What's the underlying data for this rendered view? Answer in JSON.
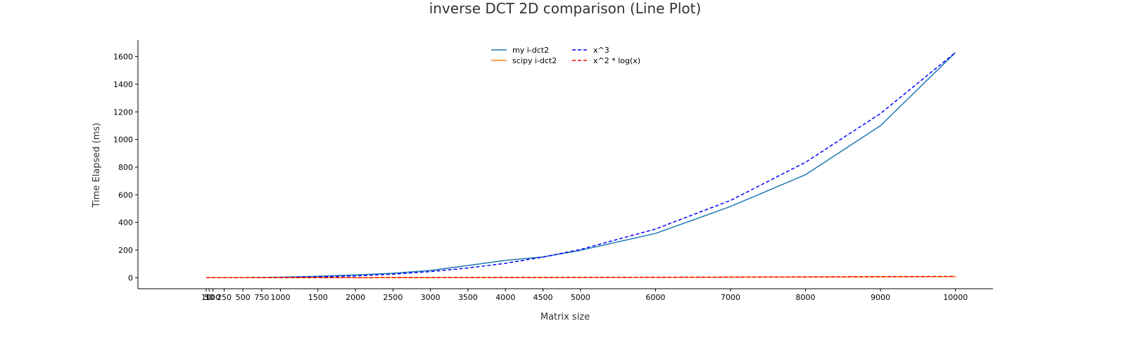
{
  "chart_data": {
    "type": "line",
    "title": "inverse DCT 2D comparison (Line Plot)",
    "xlabel": "Matrix size",
    "ylabel": "Time Elapsed (ms)",
    "xlim": [
      -900,
      10500
    ],
    "ylim": [
      -80,
      1720
    ],
    "x": [
      10,
      50,
      100,
      250,
      500,
      750,
      1000,
      1500,
      2000,
      2500,
      3000,
      3500,
      4000,
      4500,
      5000,
      6000,
      7000,
      8000,
      9000,
      10000
    ],
    "x_ticks": [
      10,
      50,
      100,
      250,
      500,
      750,
      1000,
      1500,
      2000,
      2500,
      3000,
      3500,
      4000,
      4500,
      5000,
      6000,
      7000,
      8000,
      9000,
      10000
    ],
    "x_tick_labels": [
      "10",
      "50",
      "100",
      "250",
      "500",
      "750",
      "1000",
      "1500",
      "2000",
      "2500",
      "3000",
      "3500",
      "4000",
      "4500",
      "5000",
      "6000",
      "7000",
      "8000",
      "9000",
      "10000"
    ],
    "y_ticks": [
      0,
      200,
      400,
      600,
      800,
      1000,
      1200,
      1400,
      1600
    ],
    "y_tick_labels": [
      "0",
      "200",
      "400",
      "600",
      "800",
      "1000",
      "1200",
      "1400",
      "1600"
    ],
    "grid": false,
    "legend": {
      "placement": "top-center",
      "columns": 2
    },
    "series": [
      {
        "name": "my i-dct2",
        "color": "#1f77b4",
        "style": "solid",
        "values": [
          0,
          0,
          0,
          0.1,
          0.3,
          1.5,
          3,
          10,
          20,
          32,
          52,
          88,
          125,
          150,
          198,
          320,
          515,
          745,
          1100,
          1630
        ]
      },
      {
        "name": "scipy i-dct2",
        "color": "#ff7f0e",
        "style": "solid",
        "values": [
          0,
          0,
          0,
          0,
          0,
          0,
          0,
          0.1,
          0.2,
          0.3,
          0.4,
          0.6,
          0.8,
          1,
          1.3,
          2,
          3,
          4.5,
          6,
          8
        ]
      },
      {
        "name": "x^3",
        "color": "#0000ff",
        "style": "dashed",
        "values": [
          0,
          0,
          0,
          0,
          0.2,
          0.7,
          1.6,
          5.5,
          13,
          25.5,
          44,
          70,
          104,
          149,
          204,
          352,
          559,
          835,
          1188,
          1630
        ]
      },
      {
        "name": "x^2 * log(x)",
        "color": "#ff0000",
        "style": "dashed",
        "values": [
          0,
          0,
          0,
          0,
          0,
          0,
          0.1,
          0.1,
          0.3,
          0.5,
          0.7,
          1,
          1.3,
          1.7,
          2.1,
          3.2,
          4.4,
          5.8,
          7.5,
          9.4
        ]
      }
    ]
  }
}
